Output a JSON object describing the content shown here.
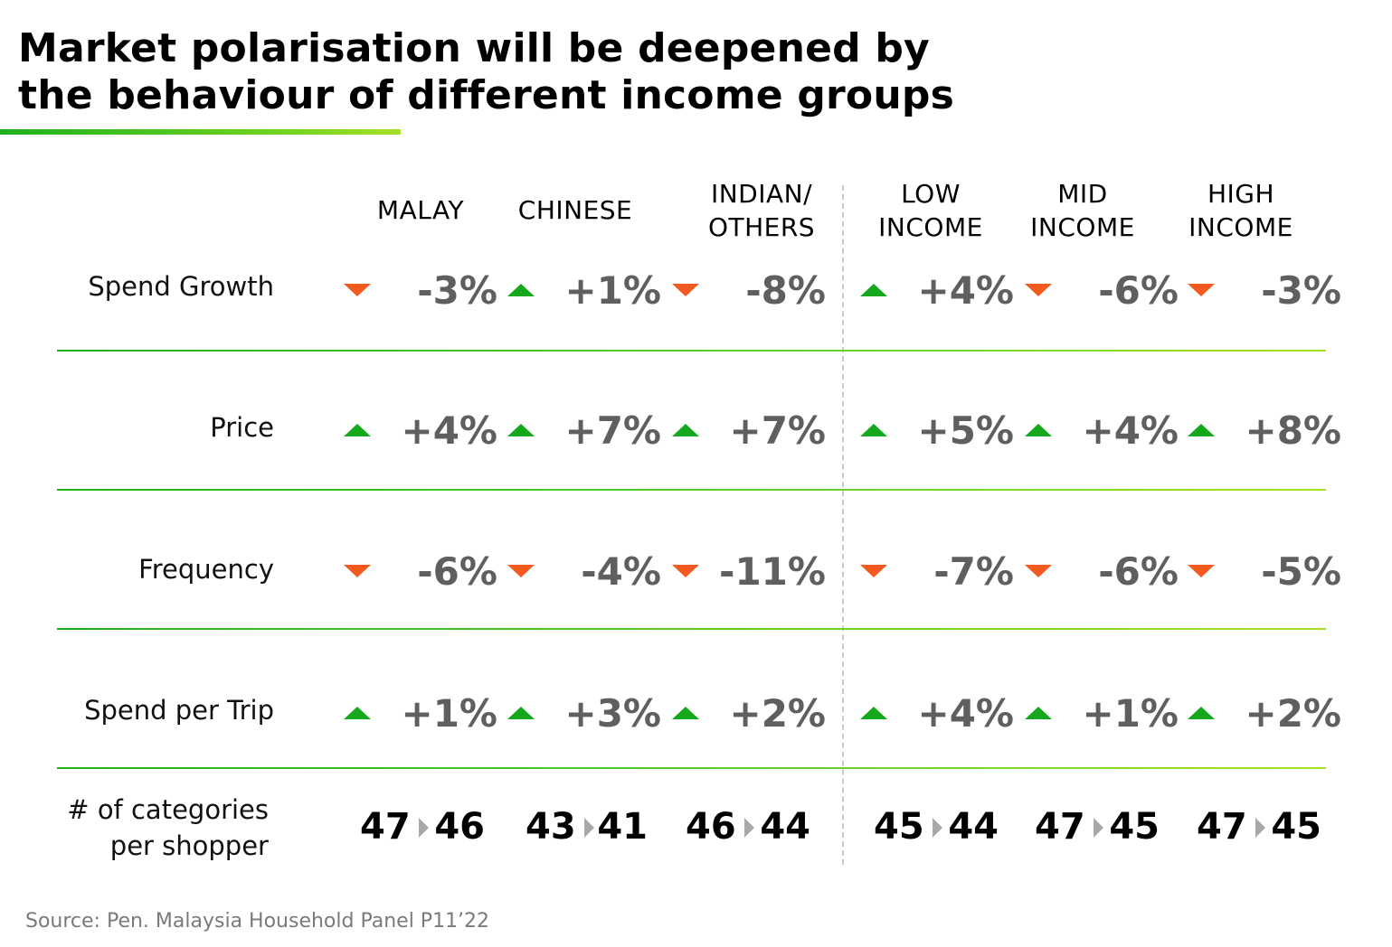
{
  "title": "Market polarisation will be deepened by\nthe behaviour of different income groups",
  "source": "Source: Pen. Malaysia Household Panel P11’22",
  "colors": {
    "up": "#16a81c",
    "down": "#f25a1f",
    "value_text": "#5f5f5f",
    "separator": "#5ecf24"
  },
  "chart_data": {
    "type": "table",
    "columns": [
      "MALAY",
      "CHINESE",
      "INDIAN/\nOTHERS",
      "LOW\nINCOME",
      "MID\nINCOME",
      "HIGH\nINCOME"
    ],
    "rows": [
      {
        "label": "Spend Growth",
        "cells": [
          {
            "value": "-3%",
            "trend": "down"
          },
          {
            "value": "+1%",
            "trend": "up"
          },
          {
            "value": "-8%",
            "trend": "down"
          },
          {
            "value": "+4%",
            "trend": "up"
          },
          {
            "value": "-6%",
            "trend": "down"
          },
          {
            "value": "-3%",
            "trend": "down"
          }
        ]
      },
      {
        "label": "Price",
        "cells": [
          {
            "value": "+4%",
            "trend": "up"
          },
          {
            "value": "+7%",
            "trend": "up"
          },
          {
            "value": "+7%",
            "trend": "up"
          },
          {
            "value": "+5%",
            "trend": "up"
          },
          {
            "value": "+4%",
            "trend": "up"
          },
          {
            "value": "+8%",
            "trend": "up"
          }
        ]
      },
      {
        "label": "Frequency",
        "cells": [
          {
            "value": "-6%",
            "trend": "down"
          },
          {
            "value": "-4%",
            "trend": "down"
          },
          {
            "value": "-11%",
            "trend": "down"
          },
          {
            "value": "-7%",
            "trend": "down"
          },
          {
            "value": "-6%",
            "trend": "down"
          },
          {
            "value": "-5%",
            "trend": "down"
          }
        ]
      },
      {
        "label": "Spend per Trip",
        "cells": [
          {
            "value": "+1%",
            "trend": "up"
          },
          {
            "value": "+3%",
            "trend": "up"
          },
          {
            "value": "+2%",
            "trend": "up"
          },
          {
            "value": "+4%",
            "trend": "up"
          },
          {
            "value": "+1%",
            "trend": "up"
          },
          {
            "value": "+2%",
            "trend": "up"
          }
        ]
      }
    ],
    "categories_row": {
      "label": "# of categories\nper shopper",
      "cells": [
        {
          "from": "47",
          "to": "46"
        },
        {
          "from": "43",
          "to": "41"
        },
        {
          "from": "46",
          "to": "44"
        },
        {
          "from": "45",
          "to": "44"
        },
        {
          "from": "47",
          "to": "45"
        },
        {
          "from": "47",
          "to": "45"
        }
      ]
    }
  }
}
